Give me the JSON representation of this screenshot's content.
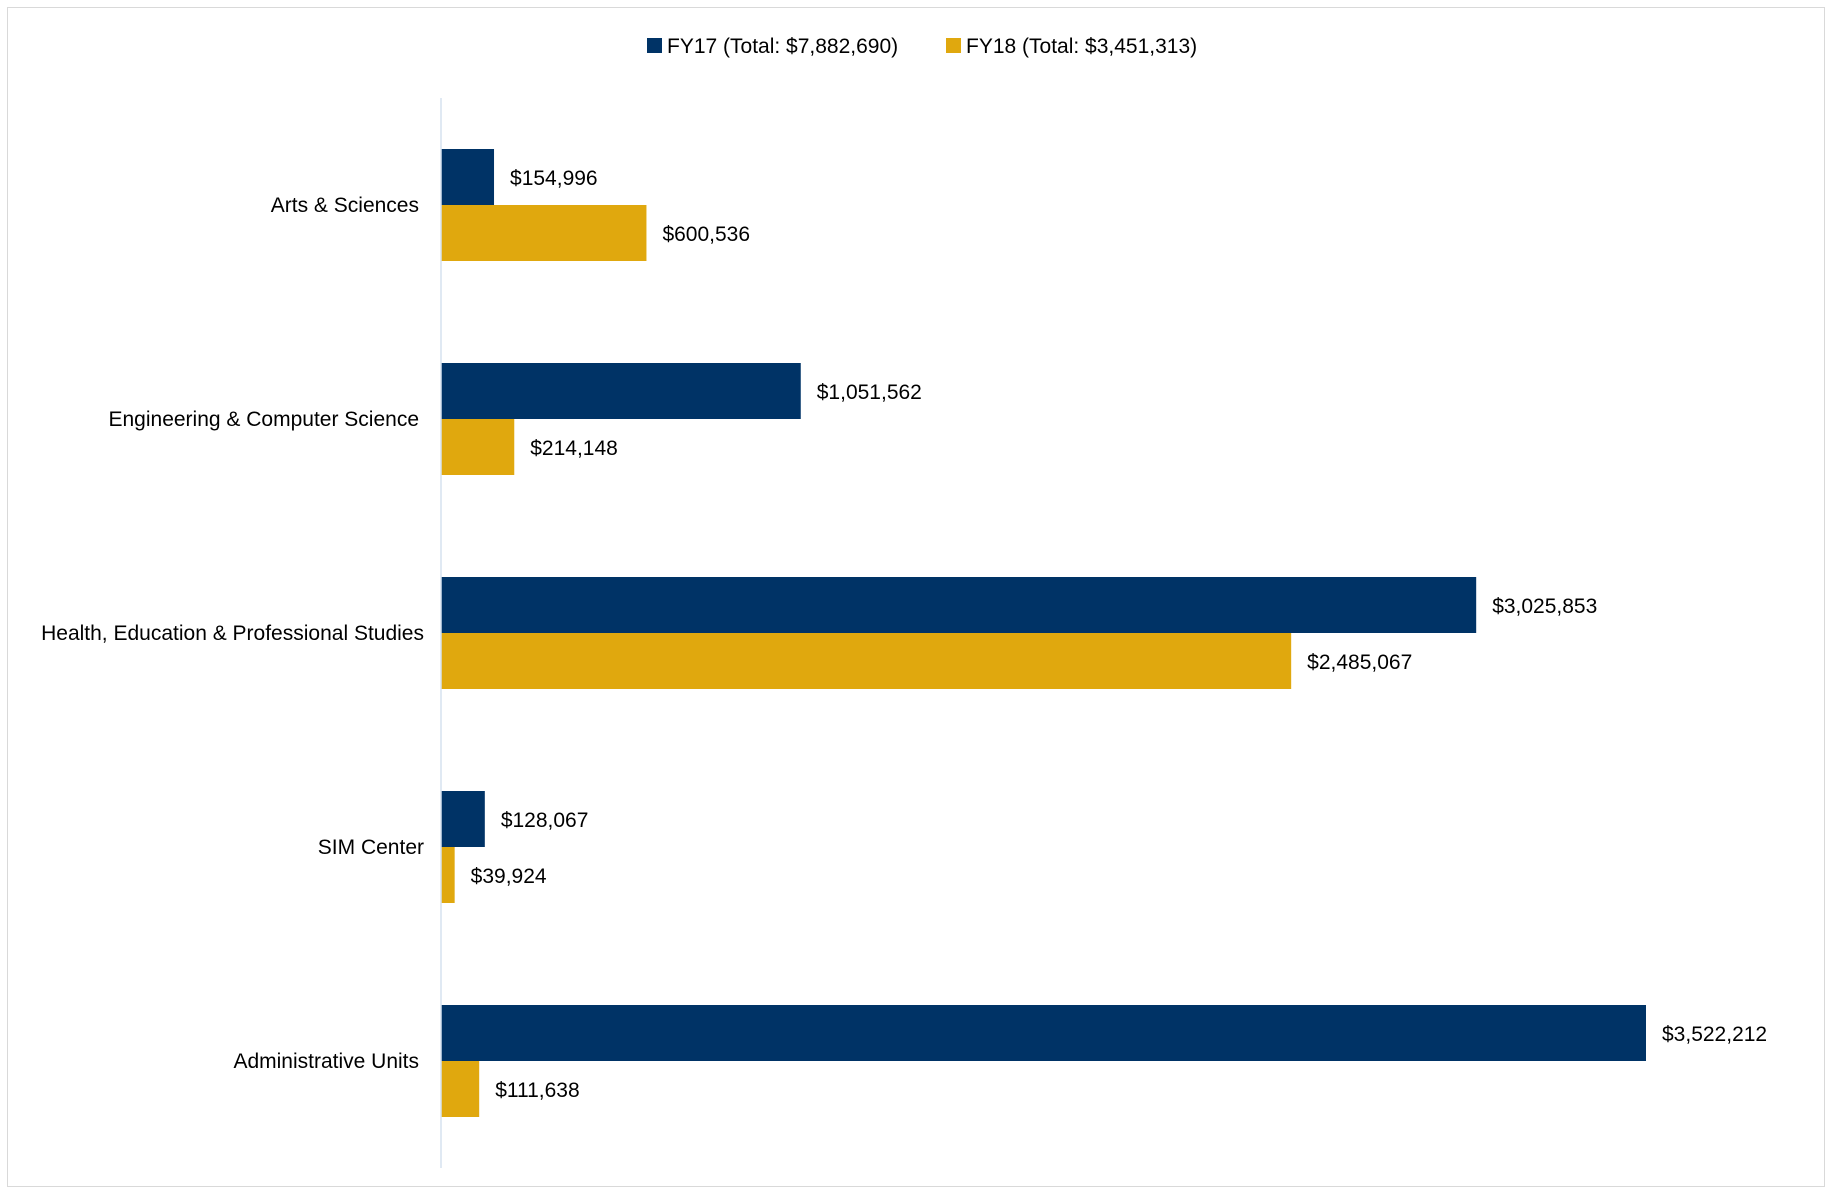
{
  "chart_data": {
    "type": "bar",
    "orientation": "horizontal",
    "categories": [
      "Arts & Sciences",
      "Engineering & Computer Science",
      "Health, Education & Professional Studies",
      "SIM Center",
      "Administrative Units"
    ],
    "series": [
      {
        "name": "FY17 (Total: $7,882,690)",
        "color": "#003366",
        "values": [
          154996,
          1051562,
          3025853,
          128067,
          3522212
        ],
        "labels": [
          "$154,996",
          "$1,051,562",
          "$3,025,853",
          "$128,067",
          "$3,522,212"
        ]
      },
      {
        "name": "FY18 (Total: $3,451,313)",
        "color": "#E0A80E",
        "values": [
          600536,
          214148,
          2485067,
          39924,
          111638
        ],
        "labels": [
          "$600,536",
          "$214,148",
          "$2,485,067",
          "$39,924",
          "$111,638"
        ]
      }
    ],
    "title": "",
    "xlabel": "",
    "ylabel": "",
    "xlim": [
      0,
      3522212
    ],
    "grid": false,
    "legend_position": "top-center",
    "axis_color": "#d6e2ef"
  }
}
